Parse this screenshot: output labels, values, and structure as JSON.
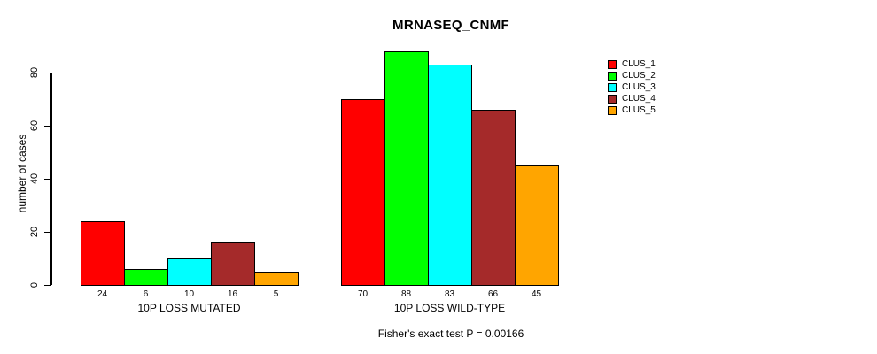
{
  "chart_data": {
    "type": "bar",
    "title": "MRNASEQ_CNMF",
    "ylabel": "number of cases",
    "xlabel": "",
    "subtitle": "Fisher's exact test P = 0.00166",
    "y_ticks": [
      0,
      20,
      40,
      60,
      80
    ],
    "ylim": [
      0,
      88
    ],
    "grid": false,
    "legend_position": "right",
    "bar_value_labels_shown": true,
    "categories": [
      "10P LOSS MUTATED",
      "10P LOSS WILD-TYPE"
    ],
    "series": [
      {
        "name": "CLUS_1",
        "color": "#FF0000",
        "values": [
          24,
          70
        ]
      },
      {
        "name": "CLUS_2",
        "color": "#00FF00",
        "values": [
          6,
          88
        ]
      },
      {
        "name": "CLUS_3",
        "color": "#00FFFF",
        "values": [
          10,
          83
        ]
      },
      {
        "name": "CLUS_4",
        "color": "#A52A2A",
        "values": [
          16,
          66
        ]
      },
      {
        "name": "CLUS_5",
        "color": "#FFA500",
        "values": [
          5,
          45
        ]
      }
    ]
  }
}
